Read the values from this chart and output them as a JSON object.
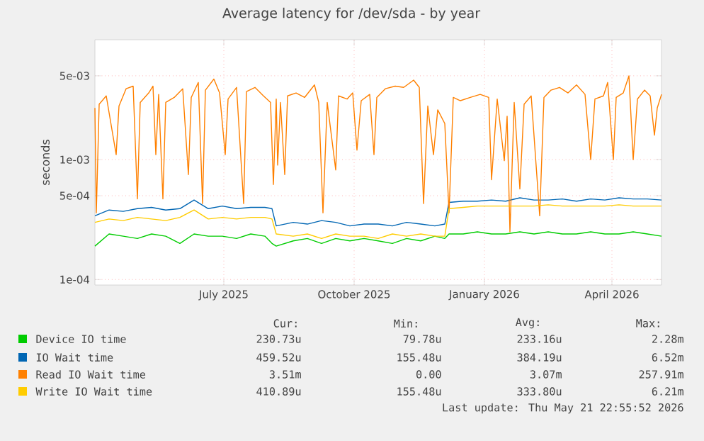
{
  "chart_data": {
    "type": "line",
    "title": "Average latency for /dev/sda - by year",
    "ylabel": "seconds",
    "log": true,
    "grid": true,
    "legend": "bottom",
    "xlim": [
      "2025-04-16",
      "2026-05-21"
    ],
    "ylim": [
      9e-05,
      0.01
    ],
    "xticks": [
      {
        "value": "2025-07-16",
        "label": "July 2025"
      },
      {
        "value": "2025-10-16",
        "label": "October 2025"
      },
      {
        "value": "2026-01-16",
        "label": "January 2026"
      },
      {
        "value": "2026-04-16",
        "label": "April 2026"
      }
    ],
    "yticks": [
      {
        "value": 0.0001,
        "label": "1e-04"
      },
      {
        "value": 0.0005,
        "label": "5e-04"
      },
      {
        "value": 0.001,
        "label": "1e-03"
      },
      {
        "value": 0.005,
        "label": "5e-03"
      }
    ],
    "x": [
      "2025-04-16",
      "2025-04-26",
      "2025-05-06",
      "2025-05-16",
      "2025-05-26",
      "2025-06-05",
      "2025-06-15",
      "2025-06-25",
      "2025-07-05",
      "2025-07-15",
      "2025-07-25",
      "2025-08-04",
      "2025-08-14",
      "2025-08-19",
      "2025-08-22",
      "2025-09-03",
      "2025-09-13",
      "2025-09-23",
      "2025-10-03",
      "2025-10-13",
      "2025-10-23",
      "2025-11-02",
      "2025-11-12",
      "2025-11-22",
      "2025-12-02",
      "2025-12-12",
      "2025-12-19",
      "2025-12-22",
      "2026-01-01",
      "2026-01-11",
      "2026-01-21",
      "2026-01-31",
      "2026-02-10",
      "2026-02-20",
      "2026-03-02",
      "2026-03-12",
      "2026-03-22",
      "2026-04-01",
      "2026-04-11",
      "2026-04-21",
      "2026-05-01",
      "2026-05-11",
      "2026-05-21"
    ],
    "series": [
      {
        "name": "Device IO time",
        "color": "#00cc00",
        "values": [
          0.00019,
          0.00024,
          0.00023,
          0.00022,
          0.00024,
          0.00023,
          0.0002,
          0.00024,
          0.00023,
          0.00023,
          0.00022,
          0.00024,
          0.00023,
          0.0002,
          0.00019,
          0.00021,
          0.00022,
          0.0002,
          0.00022,
          0.00021,
          0.00022,
          0.00021,
          0.0002,
          0.00022,
          0.00021,
          0.00023,
          0.00022,
          0.00024,
          0.00024,
          0.00025,
          0.00024,
          0.00024,
          0.00025,
          0.00024,
          0.00025,
          0.00024,
          0.00024,
          0.00025,
          0.00024,
          0.00024,
          0.00025,
          0.00024,
          0.00023
        ]
      },
      {
        "name": "IO Wait time",
        "color": "#0066b3",
        "values": [
          0.00034,
          0.00038,
          0.00037,
          0.00039,
          0.0004,
          0.00038,
          0.00039,
          0.00046,
          0.00039,
          0.00041,
          0.00039,
          0.0004,
          0.0004,
          0.00039,
          0.00028,
          0.0003,
          0.00029,
          0.00031,
          0.0003,
          0.00028,
          0.00029,
          0.00029,
          0.00028,
          0.0003,
          0.00029,
          0.00028,
          0.00029,
          0.00044,
          0.00045,
          0.00045,
          0.00046,
          0.00045,
          0.00048,
          0.00046,
          0.00046,
          0.00047,
          0.00045,
          0.00047,
          0.00046,
          0.00048,
          0.00047,
          0.00047,
          0.00046
        ]
      },
      {
        "name": "Read IO Wait time",
        "color": "#ff8000",
        "x": [
          "2025-04-16",
          "2025-04-17",
          "2025-04-19",
          "2025-04-24",
          "2025-05-01",
          "2025-05-03",
          "2025-05-08",
          "2025-05-13",
          "2025-05-16",
          "2025-05-18",
          "2025-05-24",
          "2025-05-27",
          "2025-05-29",
          "2025-05-31",
          "2025-06-03",
          "2025-06-05",
          "2025-06-11",
          "2025-06-17",
          "2025-06-21",
          "2025-06-23",
          "2025-06-28",
          "2025-07-01",
          "2025-07-03",
          "2025-07-09",
          "2025-07-13",
          "2025-07-17",
          "2025-07-19",
          "2025-07-25",
          "2025-07-30",
          "2025-08-01",
          "2025-08-07",
          "2025-08-13",
          "2025-08-18",
          "2025-08-20",
          "2025-08-22",
          "2025-08-23",
          "2025-08-25",
          "2025-08-28",
          "2025-08-30",
          "2025-09-05",
          "2025-09-11",
          "2025-09-18",
          "2025-09-21",
          "2025-09-24",
          "2025-09-27",
          "2025-10-03",
          "2025-10-05",
          "2025-10-11",
          "2025-10-15",
          "2025-10-18",
          "2025-10-21",
          "2025-10-27",
          "2025-10-30",
          "2025-11-01",
          "2025-11-07",
          "2025-11-14",
          "2025-11-20",
          "2025-11-27",
          "2025-12-01",
          "2025-12-04",
          "2025-12-07",
          "2025-12-11",
          "2025-12-14",
          "2025-12-19",
          "2025-12-22",
          "2025-12-25",
          "2025-12-30",
          "2026-01-06",
          "2026-01-13",
          "2026-01-19",
          "2026-01-21",
          "2026-01-25",
          "2026-01-30",
          "2026-02-01",
          "2026-02-03",
          "2026-02-06",
          "2026-02-10",
          "2026-02-13",
          "2026-02-18",
          "2026-02-24",
          "2026-02-27",
          "2026-03-04",
          "2026-03-10",
          "2026-03-16",
          "2026-03-22",
          "2026-03-28",
          "2026-04-01",
          "2026-04-04",
          "2026-04-10",
          "2026-04-13",
          "2026-04-17",
          "2026-04-19",
          "2026-04-24",
          "2026-04-28",
          "2026-05-01",
          "2026-05-04",
          "2026-05-09",
          "2026-05-13",
          "2026-05-16",
          "2026-05-18",
          "2026-05-21"
        ],
        "values": [
          0.0027,
          0.00036,
          0.0029,
          0.0034,
          0.0011,
          0.0028,
          0.0039,
          0.0041,
          0.00047,
          0.003,
          0.0036,
          0.0041,
          0.0011,
          0.0035,
          0.00047,
          0.003,
          0.0033,
          0.0039,
          0.00075,
          0.0033,
          0.0044,
          0.00043,
          0.0038,
          0.0047,
          0.0036,
          0.0011,
          0.0032,
          0.004,
          0.00043,
          0.0037,
          0.004,
          0.0034,
          0.003,
          0.00062,
          0.0032,
          0.0009,
          0.003,
          0.00075,
          0.0034,
          0.0036,
          0.0033,
          0.0042,
          0.003,
          0.00036,
          0.003,
          0.00082,
          0.0034,
          0.0032,
          0.0036,
          0.0012,
          0.0031,
          0.0035,
          0.0011,
          0.0033,
          0.0039,
          0.0041,
          0.004,
          0.0046,
          0.004,
          0.00043,
          0.0028,
          0.0011,
          0.0026,
          0.002,
          0.00036,
          0.0033,
          0.0031,
          0.0033,
          0.0035,
          0.0033,
          0.00068,
          0.0032,
          0.00098,
          0.0023,
          0.00025,
          0.003,
          0.00057,
          0.0029,
          0.0034,
          0.00034,
          0.0033,
          0.0038,
          0.004,
          0.0036,
          0.0042,
          0.0035,
          0.001,
          0.0032,
          0.0034,
          0.0044,
          0.001,
          0.0033,
          0.0036,
          0.005,
          0.001,
          0.0032,
          0.0038,
          0.0034,
          0.0016,
          0.0027,
          0.0035
        ]
      },
      {
        "name": "Write IO Wait time",
        "color": "#ffcc00",
        "values": [
          0.0003,
          0.00032,
          0.00031,
          0.00033,
          0.00032,
          0.00031,
          0.00033,
          0.00038,
          0.00032,
          0.00033,
          0.00032,
          0.00033,
          0.00033,
          0.00032,
          0.00024,
          0.00023,
          0.00024,
          0.00022,
          0.00024,
          0.00023,
          0.00023,
          0.00022,
          0.00024,
          0.00023,
          0.00024,
          0.00023,
          0.00023,
          0.00039,
          0.0004,
          0.00041,
          0.00041,
          0.00041,
          0.00041,
          0.00041,
          0.00042,
          0.00041,
          0.00041,
          0.00041,
          0.00041,
          0.00042,
          0.00041,
          0.00041,
          0.00041
        ]
      }
    ],
    "annotations": [
      "Cur:",
      "Min:",
      "Avg:",
      "Max:",
      "230.73u",
      "79.78u",
      "233.16u",
      "2.28m",
      "459.52u",
      "155.48u",
      "384.19u",
      "6.52m",
      "3.51m",
      "0.00",
      "3.07m",
      "257.91m",
      "410.89u",
      "155.48u",
      "333.80u",
      "6.21m",
      "Last update: Thu May 21 22:55:52 2026"
    ]
  }
}
